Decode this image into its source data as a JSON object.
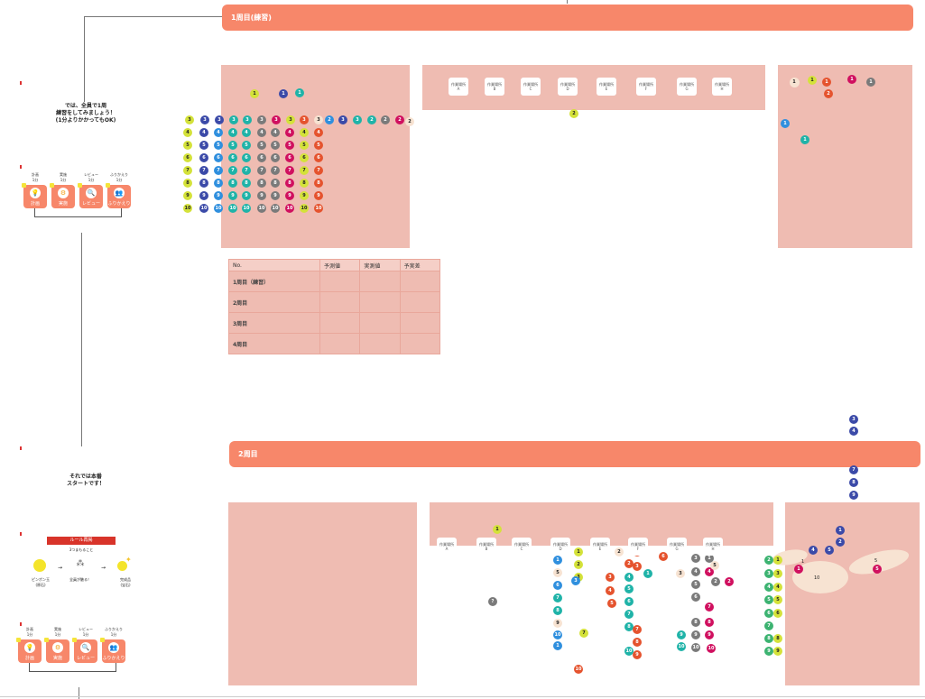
{
  "section1": {
    "banner": "1周目(練習)"
  },
  "section2": {
    "banner": "2周目"
  },
  "notes": {
    "practice": [
      "では、全員で1周",
      "練習をしてみましょう！",
      "(1分よりかかってもOK)"
    ],
    "start": [
      "それでは本番",
      "スタートです！"
    ]
  },
  "cycle_steps": [
    {
      "top": "計画",
      "sub": "1分",
      "label": "計画",
      "icon": "bulb-icon",
      "glyph": "💡"
    },
    {
      "top": "実施",
      "sub": "1分",
      "label": "実施",
      "icon": "gear-icon",
      "glyph": "⚙"
    },
    {
      "top": "レビュー",
      "sub": "1分",
      "label": "レビュー",
      "icon": "magnifier-icon",
      "glyph": "🔍"
    },
    {
      "top": "ふりかえり",
      "sub": "1分",
      "label": "ふりかえり",
      "icon": "people-icon",
      "glyph": "👥"
    }
  ],
  "rules": {
    "title": "ルール再掲",
    "subtitle": "3つまもること",
    "items": [
      {
        "label": "ピンポン玉\n(原石)",
        "icon": "ball-icon"
      },
      {
        "label": "全員が触る！",
        "icon": "team-icon"
      },
      {
        "label": "完成品\n(宝石)",
        "icon": "sparkle-icon"
      }
    ]
  },
  "workstations": [
    "作業場所\nA",
    "作業場所\nB",
    "作業場所\nC",
    "作業場所\nD",
    "作業場所\nE",
    "作業場所\nF",
    "作業場所\nG",
    "作業場所\nH"
  ],
  "workstation_labels_2": [
    "作業場所\nA",
    "作業場所\nB",
    "作業場所\nC",
    "作業場所\nD",
    "作業場所\nE",
    "作業場所\nF",
    "作業場所\nG",
    "作業場所\nH"
  ],
  "tracking_table": {
    "headers": [
      "No.",
      "予測値",
      "実測値",
      "予実差"
    ],
    "rows": [
      "1周目（練習）",
      "2周目",
      "3周目",
      "4周目"
    ]
  },
  "bead_colors": {
    "yellow": "#d4e23a",
    "navy": "#3b4aa8",
    "teal": "#1fb3a8",
    "gray": "#7a7a7a",
    "magenta": "#d0105f",
    "orange": "#e5532e",
    "cream": "#f7e3d2",
    "blue": "#2f8fde",
    "green": "#3cb371"
  },
  "grid_rows": [
    "3",
    "4",
    "5",
    "6",
    "7",
    "8",
    "9",
    "10"
  ],
  "grid_row3_tail": [
    "3",
    "3",
    "2",
    "2",
    "2"
  ]
}
